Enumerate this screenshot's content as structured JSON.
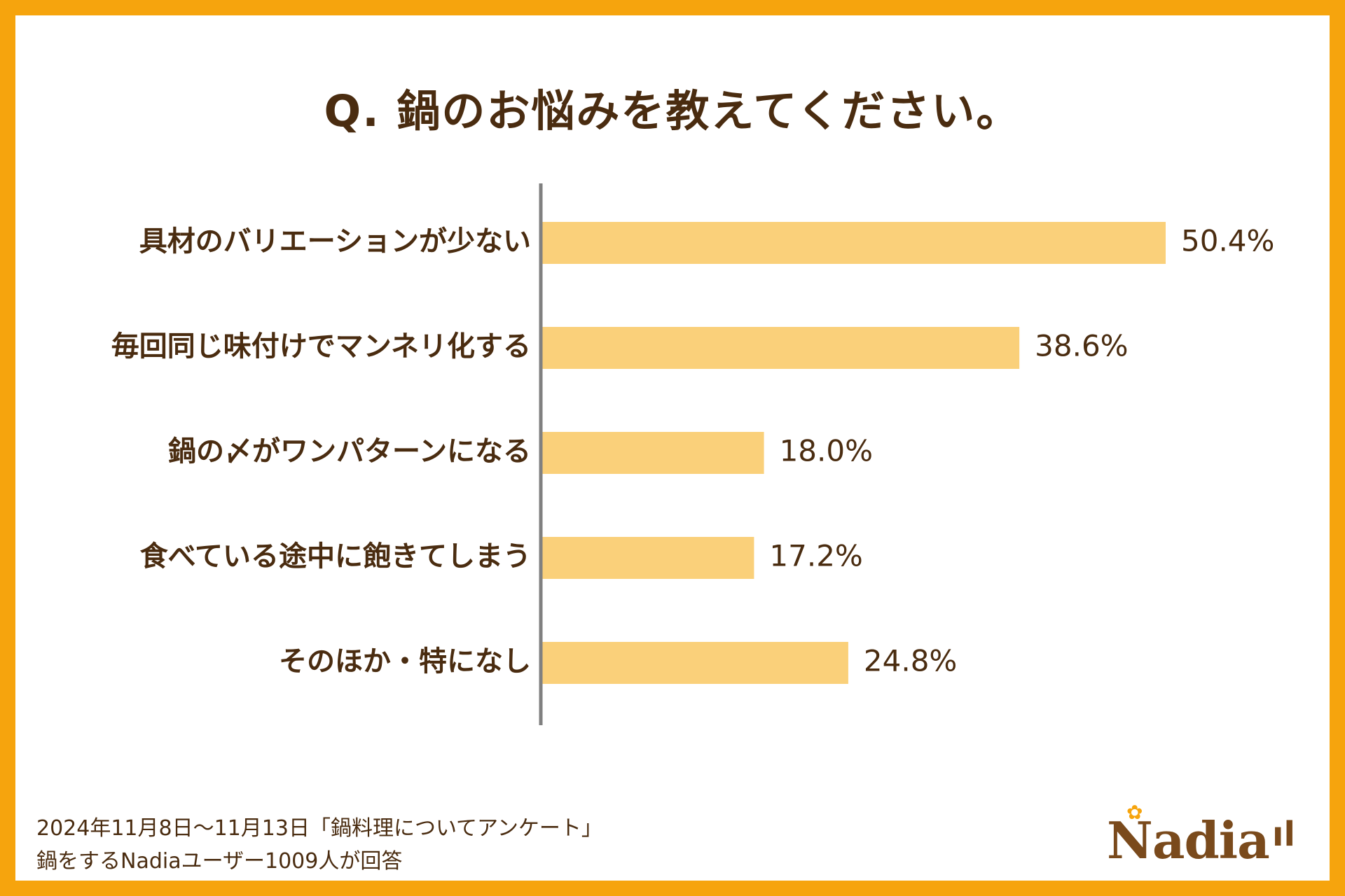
{
  "colors": {
    "frame": "#f6a40d",
    "bar": "#fad07a",
    "text": "#4a2c10",
    "axis": "#808080"
  },
  "chart_data": {
    "type": "bar",
    "orientation": "horizontal",
    "title": "Q. 鍋のお悩みを教えてください。",
    "categories": [
      "具材のバリエーションが少ない",
      "毎回同じ味付けでマンネリ化する",
      "鍋の〆がワンパターンになる",
      "食べている途中に飽きてしまう",
      "そのほか・特になし"
    ],
    "values": [
      50.4,
      38.6,
      18.0,
      17.2,
      24.8
    ],
    "value_labels": [
      "50.4%",
      "38.6%",
      "18.0%",
      "17.2%",
      "24.8%"
    ],
    "unit": "%",
    "xlim": [
      0,
      60
    ],
    "grid": false
  },
  "footer": {
    "line1": "2024年11月8日〜11月13日「鍋料理についてアンケート」",
    "line2": "鍋をするNadiaユーザー1009人が回答"
  },
  "logo": {
    "name": "Nadia",
    "star_icon": "flower-icon",
    "cutlery_icon": "fork-knife-icon"
  }
}
